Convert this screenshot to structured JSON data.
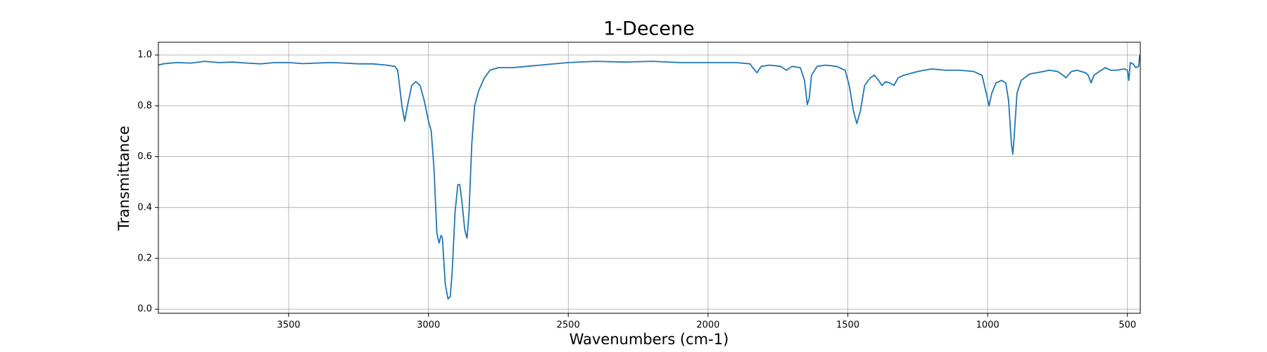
{
  "chart_data": {
    "type": "line",
    "title": "1-Decene",
    "x_label": "Wavenumbers (cm-1)",
    "y_label": "Transmittance",
    "xlim": [
      3966,
      454
    ],
    "ylim": [
      -0.016,
      1.05
    ],
    "xticks": [
      3500,
      3000,
      2500,
      2000,
      1500,
      1000,
      500
    ],
    "yticks": [
      {
        "value": 0,
        "label": "0.0"
      },
      0.2,
      0.4,
      0.6,
      0.8,
      {
        "value": 1,
        "label": "1.0"
      }
    ],
    "grid": true,
    "series": [
      {
        "name": "1-Decene",
        "color": "#1f77b4",
        "x": [
          3966,
          3950,
          3900,
          3850,
          3800,
          3750,
          3700,
          3650,
          3600,
          3550,
          3500,
          3450,
          3400,
          3350,
          3300,
          3250,
          3200,
          3150,
          3120,
          3110,
          3095,
          3085,
          3075,
          3060,
          3045,
          3030,
          3015,
          3000,
          2990,
          2980,
          2970,
          2962,
          2955,
          2950,
          2940,
          2930,
          2922,
          2915,
          2905,
          2895,
          2888,
          2880,
          2870,
          2862,
          2855,
          2845,
          2835,
          2820,
          2800,
          2780,
          2750,
          2700,
          2650,
          2600,
          2500,
          2400,
          2300,
          2200,
          2100,
          2000,
          1900,
          1850,
          1840,
          1825,
          1810,
          1780,
          1740,
          1720,
          1700,
          1670,
          1655,
          1645,
          1638,
          1630,
          1610,
          1580,
          1540,
          1510,
          1495,
          1480,
          1468,
          1455,
          1440,
          1420,
          1405,
          1390,
          1378,
          1365,
          1350,
          1335,
          1320,
          1300,
          1250,
          1200,
          1150,
          1100,
          1050,
          1020,
          1005,
          995,
          985,
          970,
          950,
          935,
          925,
          915,
          910,
          905,
          895,
          880,
          850,
          800,
          780,
          750,
          730,
          720,
          700,
          680,
          650,
          640,
          630,
          620,
          600,
          580,
          560,
          540,
          510,
          500,
          495,
          490,
          480,
          470,
          460,
          456
        ],
        "values": [
          0.96,
          0.965,
          0.97,
          0.968,
          0.975,
          0.97,
          0.972,
          0.968,
          0.965,
          0.97,
          0.97,
          0.966,
          0.968,
          0.97,
          0.968,
          0.965,
          0.965,
          0.96,
          0.955,
          0.94,
          0.8,
          0.74,
          0.8,
          0.88,
          0.895,
          0.88,
          0.82,
          0.74,
          0.7,
          0.55,
          0.3,
          0.26,
          0.29,
          0.28,
          0.1,
          0.04,
          0.05,
          0.15,
          0.38,
          0.49,
          0.49,
          0.42,
          0.31,
          0.28,
          0.38,
          0.65,
          0.8,
          0.86,
          0.91,
          0.94,
          0.95,
          0.95,
          0.955,
          0.96,
          0.97,
          0.975,
          0.972,
          0.975,
          0.97,
          0.97,
          0.97,
          0.965,
          0.95,
          0.93,
          0.955,
          0.96,
          0.955,
          0.94,
          0.955,
          0.95,
          0.9,
          0.805,
          0.83,
          0.92,
          0.955,
          0.96,
          0.955,
          0.94,
          0.88,
          0.78,
          0.73,
          0.78,
          0.88,
          0.91,
          0.92,
          0.9,
          0.88,
          0.895,
          0.89,
          0.88,
          0.91,
          0.92,
          0.935,
          0.945,
          0.94,
          0.94,
          0.935,
          0.92,
          0.85,
          0.8,
          0.85,
          0.89,
          0.9,
          0.89,
          0.82,
          0.65,
          0.61,
          0.68,
          0.85,
          0.9,
          0.925,
          0.935,
          0.94,
          0.935,
          0.92,
          0.91,
          0.935,
          0.94,
          0.93,
          0.92,
          0.89,
          0.92,
          0.935,
          0.95,
          0.94,
          0.94,
          0.945,
          0.94,
          0.9,
          0.97,
          0.965,
          0.95,
          0.955,
          1.0
        ]
      }
    ]
  }
}
